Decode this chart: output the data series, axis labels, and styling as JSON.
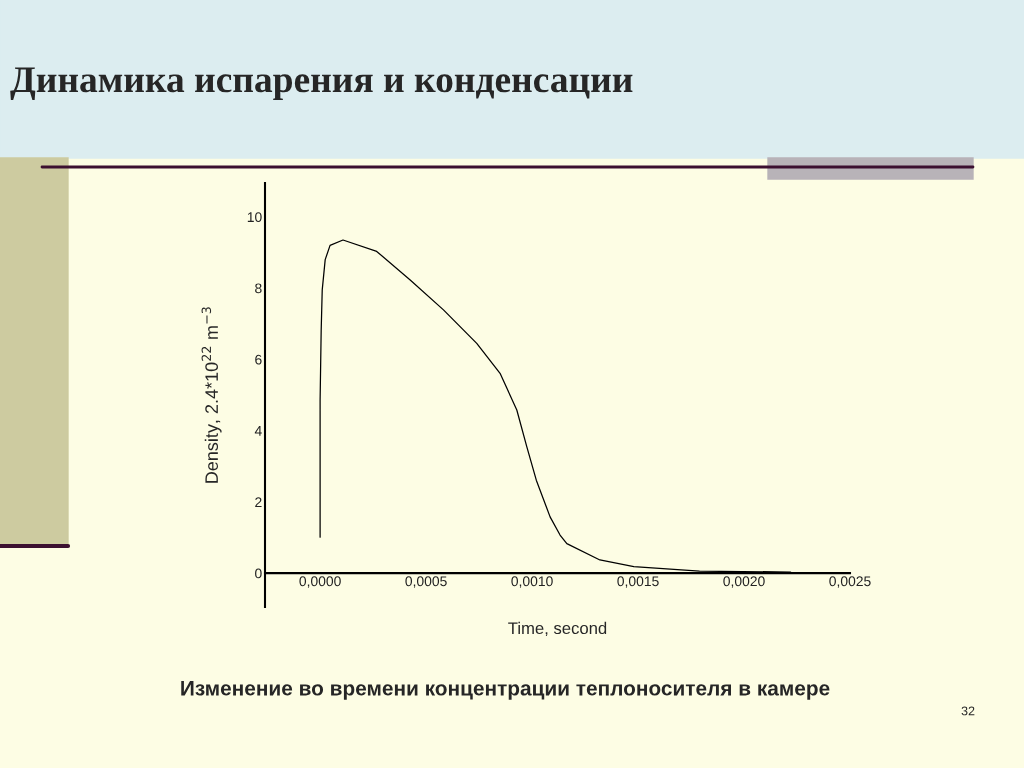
{
  "chart_data": {
    "type": "line",
    "title": "Динамика испарения и конденсации",
    "xlabel": "Time, second",
    "ylabel": "Density, 2.4*10$^{22}$ m$^{−3}$",
    "annotations": [
      "Изменение во времени концентрации теплоносителя в камере",
      "32"
    ],
    "series": [
      {
        "color": "#000000",
        "x": [
          0,
          0,
          5e-06,
          1e-05,
          2.4e-05,
          4.7e-05,
          0.000108,
          0.000267,
          0.000425,
          0.000582,
          0.000739,
          0.000849,
          0.000928,
          0.000975,
          0.00102,
          0.001085,
          0.001132,
          0.001164,
          0.00132,
          0.00148,
          0.00179,
          0.00222
        ],
        "values": [
          1.01,
          4.86,
          6.8,
          7.95,
          8.8,
          9.2,
          9.35,
          9.03,
          8.23,
          7.39,
          6.45,
          5.61,
          4.58,
          3.55,
          2.61,
          1.58,
          1.07,
          0.83,
          0.37,
          0.18,
          0.06,
          0.03
        ]
      }
    ],
    "xlim": [
      -0.00026,
      0.0025
    ],
    "xticks": [
      {
        "value": 0,
        "label": "0,0000"
      },
      {
        "value": 0.0005,
        "label": "0,0005"
      },
      {
        "value": 0.001,
        "label": "0,0010"
      },
      {
        "value": 0.0015,
        "label": "0,0015"
      },
      {
        "value": 0.002,
        "label": "0,0020"
      },
      {
        "value": 0.0025,
        "label": "0,0025"
      }
    ],
    "ylim": [
      -0.95,
      10.95
    ],
    "yticks": [
      0,
      2,
      4,
      6,
      8,
      10
    ],
    "grid": false,
    "legend": false,
    "marker": "none",
    "line_style": "solid"
  }
}
